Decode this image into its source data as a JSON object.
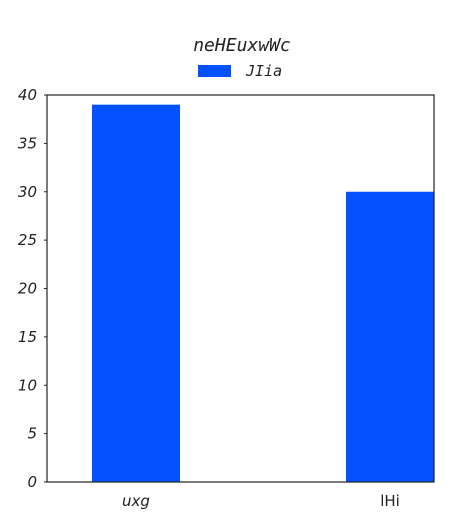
{
  "chart_data": {
    "type": "bar",
    "title": "neHEuxwWc",
    "categories": [
      "uxg",
      "lHi"
    ],
    "series": [
      {
        "name": "JIia",
        "values": [
          39,
          30
        ]
      }
    ],
    "xlabel": "",
    "ylabel": "",
    "ylim": [
      0,
      40
    ],
    "yticks": [
      0,
      5,
      10,
      15,
      20,
      25,
      30,
      35,
      40
    ],
    "grid": false,
    "legend": "top-center",
    "colors": {
      "bar": "#0451ff",
      "axis": "#222222",
      "background": "#ffffff"
    }
  }
}
